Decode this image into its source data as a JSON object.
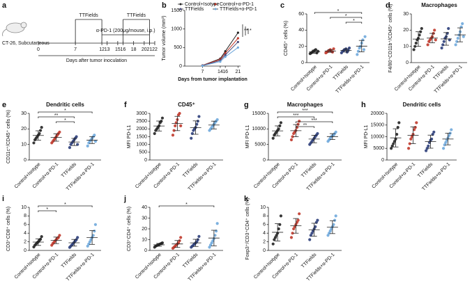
{
  "timeline": {
    "panel": "a",
    "model": "CT-26, Subcutaneous",
    "days": [
      0,
      7,
      12,
      13,
      15,
      16,
      18,
      20,
      21,
      22
    ],
    "periods": [
      {
        "label": "TTFields",
        "start": 7,
        "end": 12
      },
      {
        "label": "TTFields",
        "start": 16,
        "end": 21
      }
    ],
    "dosing": {
      "label": "α-PD-1 (200μg/mouse, i.p.)",
      "start": 12,
      "end": 21
    },
    "axis_label": "Days after tumor inoculation"
  },
  "chart_data": [
    {
      "type": "line",
      "panel": "b",
      "x_label": "Days from tumor implantation",
      "y_label": "Tumor volume (mm³)",
      "x": [
        7,
        14,
        16,
        21
      ],
      "xlim": [
        0,
        22
      ],
      "xticks": [
        7,
        14,
        16,
        21
      ],
      "ylim": [
        0,
        1500
      ],
      "yticks": [
        0,
        500,
        1000,
        1500
      ],
      "significance": [
        "**",
        "*",
        "*"
      ],
      "series": [
        {
          "name": "Control+Isotype",
          "color": "#222222",
          "values": [
            20,
            200,
            400,
            900
          ]
        },
        {
          "name": "Control+α-PD-1",
          "color": "#c0392b",
          "values": [
            20,
            180,
            350,
            750
          ]
        },
        {
          "name": "TTFields",
          "color": "#4a4a7a",
          "values": [
            15,
            150,
            300,
            650
          ]
        },
        {
          "name": "TTFields+α-PD-1",
          "color": "#6fa8dc",
          "values": [
            10,
            120,
            250,
            500
          ]
        }
      ]
    },
    {
      "type": "dot",
      "panel": "c",
      "title": null,
      "y_label": "CD45⁺ cells (%)",
      "ylim": [
        0,
        60
      ],
      "yticks": [
        0,
        20,
        40,
        60
      ],
      "categories": [
        "Control+Isotype",
        "Control+α-PD-1",
        "TTFields",
        "TTFields+α-PD-1"
      ],
      "colors": [
        "#222222",
        "#c0392b",
        "#2c3e7a",
        "#6fa8dc"
      ],
      "values": [
        [
          11,
          12,
          13,
          14,
          15,
          16,
          12,
          14
        ],
        [
          12,
          13,
          14,
          15,
          16,
          14,
          13,
          17
        ],
        [
          12,
          14,
          15,
          16,
          17,
          13,
          15,
          18
        ],
        [
          10,
          14,
          18,
          20,
          24,
          28,
          16,
          32
        ]
      ],
      "mean": [
        13.4,
        14.3,
        15,
        20.3
      ],
      "sd": [
        2,
        1.6,
        2,
        7
      ],
      "comparisons": [
        {
          "groups": [
            0,
            3
          ],
          "label": "*"
        },
        {
          "groups": [
            1,
            3
          ],
          "label": "*"
        },
        {
          "groups": [
            2,
            3
          ],
          "label": "*"
        }
      ]
    },
    {
      "type": "dot",
      "panel": "d",
      "title": "Macrophages",
      "y_label": "F4/80⁺CD11b⁺/CD45⁺ cells (%)",
      "ylim": [
        0,
        30
      ],
      "yticks": [
        0,
        10,
        20,
        30
      ],
      "categories": [
        "Control+Isotype",
        "Control+α-PD-1",
        "TTFields",
        "TTFields+α-PD-1"
      ],
      "colors": [
        "#222222",
        "#c0392b",
        "#2c3e7a",
        "#6fa8dc"
      ],
      "values": [
        [
          8,
          10,
          12,
          14,
          15,
          17,
          19,
          21
        ],
        [
          11,
          13,
          14,
          15,
          16,
          18,
          20,
          14
        ],
        [
          9,
          11,
          13,
          15,
          16,
          18,
          21,
          14
        ],
        [
          11,
          13,
          15,
          17,
          19,
          22,
          24,
          16
        ]
      ],
      "mean": [
        14.5,
        15.1,
        14.6,
        17.1
      ],
      "sd": [
        4.5,
        2.9,
        3.9,
        4.3
      ],
      "comparisons": []
    },
    {
      "type": "dot",
      "panel": "e",
      "title": "Dendritic cells",
      "y_label": "CD11c⁺/CD45⁺ cells (%)",
      "ylim": [
        0,
        30
      ],
      "yticks": [
        0,
        10,
        20,
        30
      ],
      "categories": [
        "Control+Isotype",
        "Control+α-PD-1",
        "TTFields",
        "TTFields+α-PD-1"
      ],
      "colors": [
        "#222222",
        "#c0392b",
        "#2c3e7a",
        "#6fa8dc"
      ],
      "values": [
        [
          11,
          13,
          14,
          15,
          16,
          17,
          19,
          21
        ],
        [
          11,
          12,
          13,
          14,
          15,
          16,
          17,
          18
        ],
        [
          8,
          10,
          11,
          12,
          13,
          14,
          15,
          10
        ],
        [
          9,
          11,
          12,
          13,
          14,
          15,
          16,
          12
        ]
      ],
      "mean": [
        15.8,
        14.5,
        11.6,
        12.8
      ],
      "sd": [
        3,
        2.4,
        2.3,
        2.2
      ],
      "comparisons": [
        {
          "groups": [
            0,
            3
          ],
          "label": "*"
        },
        {
          "groups": [
            0,
            2
          ],
          "label": "**"
        },
        {
          "groups": [
            1,
            2
          ],
          "label": "*"
        }
      ]
    },
    {
      "type": "dot",
      "panel": "f",
      "title": "CD45⁺",
      "y_label": "MFI PD-L1",
      "ylim": [
        0,
        3000
      ],
      "yticks": [
        0,
        500,
        1000,
        1500,
        2000,
        2500,
        3000
      ],
      "categories": [
        "Control+Isotype",
        "Control+α-PD-1",
        "TTFields",
        "TTFields+α-PD-1"
      ],
      "colors": [
        "#222222",
        "#c0392b",
        "#2c3e7a",
        "#6fa8dc"
      ],
      "values": [
        [
          1700,
          1900,
          2000,
          2100,
          2200,
          2400,
          2500,
          2700
        ],
        [
          1600,
          1900,
          2200,
          2400,
          2600,
          2900,
          3000,
          2200
        ],
        [
          1400,
          1700,
          1900,
          2000,
          2100,
          2300,
          2500,
          2800
        ],
        [
          1900,
          2000,
          2100,
          2200,
          2300,
          2400,
          2500,
          2600
        ]
      ],
      "mean": [
        2187,
        2350,
        2087,
        2250
      ],
      "sd": [
        320,
        460,
        430,
        250
      ],
      "comparisons": []
    },
    {
      "type": "dot",
      "panel": "g",
      "title": "Macrophages",
      "y_label": "MFI PD-L1",
      "ylim": [
        0,
        15000
      ],
      "yticks": [
        0,
        5000,
        10000,
        15000
      ],
      "categories": [
        "Control+Isotype",
        "Control+α-PD-1",
        "TTFields",
        "TTFields+α-PD-1"
      ],
      "colors": [
        "#222222",
        "#c0392b",
        "#2c3e7a",
        "#6fa8dc"
      ],
      "values": [
        [
          7000,
          8000,
          8500,
          9000,
          9500,
          10000,
          11000,
          12000
        ],
        [
          6500,
          7500,
          8500,
          9000,
          9500,
          10500,
          11500,
          12500
        ],
        [
          5000,
          5500,
          6000,
          6500,
          7000,
          7500,
          8000,
          8500
        ],
        [
          6000,
          6500,
          7000,
          7500,
          7800,
          8000,
          8500,
          9000
        ]
      ],
      "mean": [
        9375,
        9438,
        6750,
        7538
      ],
      "sd": [
        1600,
        1950,
        1200,
        950
      ],
      "comparisons": [
        {
          "groups": [
            0,
            3
          ],
          "label": "***"
        },
        {
          "groups": [
            0,
            2
          ],
          "label": "***"
        },
        {
          "groups": [
            1,
            3
          ],
          "label": "***"
        },
        {
          "groups": [
            1,
            2
          ],
          "label": "**"
        }
      ]
    },
    {
      "type": "dot",
      "panel": "h",
      "title": "Dendritic cells",
      "y_label": "MFI PD-L1",
      "ylim": [
        0,
        20000
      ],
      "yticks": [
        0,
        5000,
        10000,
        15000,
        20000
      ],
      "categories": [
        "Control+Isotype",
        "Control+α-PD-1",
        "TTFields",
        "TTFields+α-PD-1"
      ],
      "colors": [
        "#222222",
        "#c0392b",
        "#2c3e7a",
        "#6fa8dc"
      ],
      "values": [
        [
          5000,
          6000,
          7000,
          8000,
          9000,
          11000,
          14000,
          16000
        ],
        [
          5000,
          7000,
          9000,
          10000,
          11000,
          13000,
          14000,
          16000
        ],
        [
          4000,
          5000,
          6000,
          7500,
          8500,
          9000,
          11000,
          12000
        ],
        [
          5000,
          6500,
          7500,
          8500,
          9500,
          10500,
          11500,
          13000
        ]
      ],
      "mean": [
        9500,
        10625,
        7875,
        9000
      ],
      "sd": [
        3900,
        3600,
        2800,
        2500
      ],
      "comparisons": []
    },
    {
      "type": "dot",
      "panel": "i",
      "title": null,
      "y_label": "CD3⁺CD8⁺ cells (%)",
      "ylim": [
        0,
        10
      ],
      "yticks": [
        0,
        2,
        4,
        6,
        8,
        10
      ],
      "categories": [
        "Control+Isotype",
        "Control+α-PD-1",
        "TTFields",
        "TTFields+α-PD-1"
      ],
      "colors": [
        "#222222",
        "#c0392b",
        "#2c3e7a",
        "#6fa8dc"
      ],
      "values": [
        [
          0.8,
          1.2,
          1.5,
          1.8,
          2,
          2.3,
          2.6,
          3.2
        ],
        [
          1.2,
          1.6,
          1.9,
          2.2,
          2.5,
          2.8,
          3,
          3.5
        ],
        [
          0.7,
          1,
          1.3,
          1.6,
          1.9,
          2.2,
          2.5,
          3
        ],
        [
          1,
          1.5,
          2,
          2.5,
          3,
          3.5,
          4.5,
          6
        ]
      ],
      "mean": [
        1.93,
        2.34,
        1.78,
        3
      ],
      "sd": [
        0.77,
        0.75,
        0.77,
        1.6
      ],
      "comparisons": [
        {
          "groups": [
            0,
            3
          ],
          "label": "*"
        },
        {
          "groups": [
            0,
            1
          ],
          "label": "*"
        }
      ]
    },
    {
      "type": "dot",
      "panel": "j",
      "title": null,
      "y_label": "CD3⁺CD4⁺ cells (%)",
      "ylim": [
        0,
        40
      ],
      "yticks": [
        0,
        10,
        20,
        30,
        40
      ],
      "categories": [
        "Control+Isotype",
        "Control+α-PD-1",
        "TTFields",
        "TTFields+α-PD-1"
      ],
      "colors": [
        "#222222",
        "#c0392b",
        "#2c3e7a",
        "#6fa8dc"
      ],
      "values": [
        [
          3,
          4,
          4.5,
          5,
          5.5,
          6,
          6.5,
          7
        ],
        [
          2,
          3,
          4,
          5,
          6,
          7,
          9,
          12
        ],
        [
          3,
          4,
          5,
          6,
          7,
          8,
          10,
          13
        ],
        [
          3,
          5,
          7,
          9,
          11,
          14,
          18,
          25
        ]
      ],
      "mean": [
        5.2,
        6,
        7,
        11.5
      ],
      "sd": [
        1.3,
        3.2,
        3.3,
        7.2
      ],
      "comparisons": [
        {
          "groups": [
            0,
            3
          ],
          "label": "*"
        }
      ]
    },
    {
      "type": "dot",
      "panel": "k",
      "title": null,
      "y_label": "Foxp3⁺/CD3⁺CD4⁺ cells (%)",
      "ylim": [
        0,
        10
      ],
      "yticks": [
        0,
        2,
        4,
        6,
        8,
        10
      ],
      "categories": [
        "Control+Isotype",
        "Control+α-PD-1",
        "TTFields",
        "TTFields+α-PD-1"
      ],
      "colors": [
        "#222222",
        "#c0392b",
        "#2c3e7a",
        "#6fa8dc"
      ],
      "values": [
        [
          1.5,
          2.5,
          3,
          3.5,
          4,
          5,
          6,
          8
        ],
        [
          3,
          4,
          5,
          5.5,
          6,
          6.5,
          7,
          8.5
        ],
        [
          2.5,
          3.5,
          4,
          4.5,
          5,
          5.5,
          6.5,
          7
        ],
        [
          3.5,
          4,
          4.5,
          5,
          5.5,
          6,
          7,
          8
        ]
      ],
      "mean": [
        4.2,
        5.7,
        4.8,
        5.4
      ],
      "sd": [
        2,
        1.7,
        1.5,
        1.5
      ],
      "comparisons": []
    }
  ]
}
